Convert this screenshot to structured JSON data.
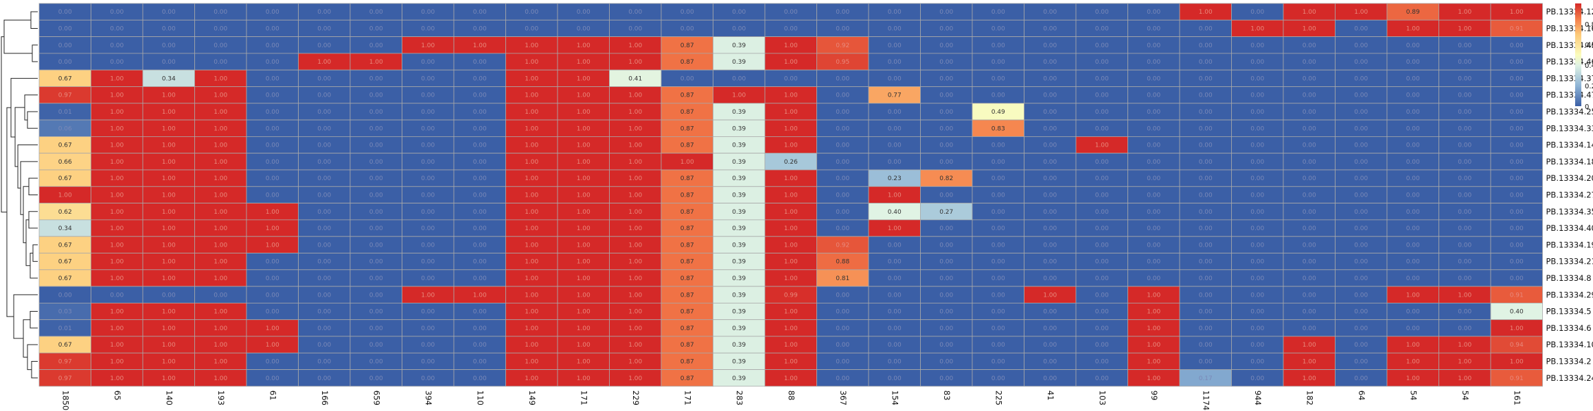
{
  "chart_data": {
    "type": "heatmap",
    "columns": [
      "1850",
      "65",
      "140",
      "193",
      "61",
      "166",
      "659",
      "394",
      "110",
      "149",
      "171",
      "229",
      "171",
      "283",
      "88",
      "367",
      "154",
      "83",
      "225",
      "41",
      "103",
      "99",
      "1174",
      "944",
      "182",
      "64",
      "54",
      "54",
      "161"
    ],
    "rows": [
      "PB.13334.12",
      "PB.13334.16",
      "PB.13334.45",
      "PB.13334.46",
      "PB.13334.37",
      "PB.13334.47",
      "PB.13334.25",
      "PB.13334.33",
      "PB.13334.14",
      "PB.13334.18",
      "PB.13334.20",
      "PB.13334.27",
      "PB.13334.35",
      "PB.13334.40",
      "PB.13334.19",
      "PB.13334.21",
      "PB.13334.8",
      "PB.13334.29",
      "PB.13334.5",
      "PB.13334.6",
      "PB.13334.10",
      "PB.13334.2",
      "PB.13334.24"
    ],
    "values": [
      [
        0,
        0,
        0,
        0,
        0,
        0,
        0,
        0,
        0,
        0,
        0,
        0,
        0,
        0,
        0,
        0,
        0,
        0,
        0,
        0,
        0,
        0,
        1,
        0,
        1,
        1,
        0.89,
        1,
        1
      ],
      [
        0,
        0,
        0,
        0,
        0,
        0,
        0,
        0,
        0,
        0,
        0,
        0,
        0,
        0,
        0,
        0,
        0,
        0,
        0,
        0,
        0,
        0,
        0,
        1,
        1,
        0,
        1,
        1,
        0.91
      ],
      [
        0,
        0,
        0,
        0,
        0,
        0,
        0,
        1,
        1,
        1,
        1,
        1,
        0.87,
        0.39,
        1,
        0.92,
        0,
        0,
        0,
        0,
        0,
        0,
        0,
        0,
        0,
        0,
        0,
        0,
        0
      ],
      [
        0,
        0,
        0,
        0,
        0,
        1,
        1,
        0,
        0,
        1,
        1,
        1,
        0.87,
        0.39,
        1,
        0.95,
        0,
        0,
        0,
        0,
        0,
        0,
        0,
        0,
        0,
        0,
        0,
        0,
        0
      ],
      [
        0.67,
        1,
        0.34,
        1,
        0,
        0,
        0,
        0,
        0,
        1,
        1,
        0.41,
        0,
        0,
        0,
        0,
        0,
        0,
        0,
        0,
        0,
        0,
        0,
        0,
        0,
        0,
        0,
        0,
        0
      ],
      [
        0.97,
        1,
        1,
        1,
        0,
        0,
        0,
        0,
        0,
        1,
        1,
        1,
        0.87,
        1,
        1,
        0,
        0.77,
        0,
        0,
        0,
        0,
        0,
        0,
        0,
        0,
        0,
        0,
        0,
        0
      ],
      [
        0.01,
        1,
        1,
        1,
        0,
        0,
        0,
        0,
        0,
        1,
        1,
        1,
        0.87,
        0.39,
        1,
        0,
        0,
        0,
        0.49,
        0,
        0,
        0,
        0,
        0,
        0,
        0,
        0,
        0,
        0
      ],
      [
        0.06,
        1,
        1,
        1,
        0,
        0,
        0,
        0,
        0,
        1,
        1,
        1,
        0.87,
        0.39,
        1,
        0,
        0,
        0,
        0.83,
        0,
        0,
        0,
        0,
        0,
        0,
        0,
        0,
        0,
        0
      ],
      [
        0.67,
        1,
        1,
        1,
        0,
        0,
        0,
        0,
        0,
        1,
        1,
        1,
        0.87,
        0.39,
        1,
        0,
        0,
        0,
        0,
        0,
        1,
        0,
        0,
        0,
        0,
        0,
        0,
        0,
        0
      ],
      [
        0.66,
        1,
        1,
        1,
        0,
        0,
        0,
        0,
        0,
        1,
        1,
        1,
        1,
        0.39,
        0.26,
        0,
        0,
        0,
        0,
        0,
        0,
        0,
        0,
        0,
        0,
        0,
        0,
        0,
        0
      ],
      [
        0.67,
        1,
        1,
        1,
        0,
        0,
        0,
        0,
        0,
        1,
        1,
        1,
        0.87,
        0.39,
        1,
        0,
        0.23,
        0.82,
        0,
        0,
        0,
        0,
        0,
        0,
        0,
        0,
        0,
        0,
        0
      ],
      [
        1,
        1,
        1,
        1,
        0,
        0,
        0,
        0,
        0,
        1,
        1,
        1,
        0.87,
        0.39,
        1,
        0,
        1,
        0,
        0,
        0,
        0,
        0,
        0,
        0,
        0,
        0,
        0,
        0,
        0
      ],
      [
        0.62,
        1,
        1,
        1,
        1,
        0,
        0,
        0,
        0,
        1,
        1,
        1,
        0.87,
        0.39,
        1,
        0,
        0.4,
        0.27,
        0,
        0,
        0,
        0,
        0,
        0,
        0,
        0,
        0,
        0,
        0
      ],
      [
        0.34,
        1,
        1,
        1,
        1,
        0,
        0,
        0,
        0,
        1,
        1,
        1,
        0.87,
        0.39,
        1,
        0,
        1,
        0,
        0,
        0,
        0,
        0,
        0,
        0,
        0,
        0,
        0,
        0,
        0
      ],
      [
        0.67,
        1,
        1,
        1,
        1,
        0,
        0,
        0,
        0,
        1,
        1,
        1,
        0.87,
        0.39,
        1,
        0.92,
        0,
        0,
        0,
        0,
        0,
        0,
        0,
        0,
        0,
        0,
        0,
        0,
        0
      ],
      [
        0.67,
        1,
        1,
        1,
        0,
        0,
        0,
        0,
        0,
        1,
        1,
        1,
        0.87,
        0.39,
        1,
        0.88,
        0,
        0,
        0,
        0,
        0,
        0,
        0,
        0,
        0,
        0,
        0,
        0,
        0
      ],
      [
        0.67,
        1,
        1,
        1,
        0,
        0,
        0,
        0,
        0,
        1,
        1,
        1,
        0.87,
        0.39,
        1,
        0.81,
        0,
        0,
        0,
        0,
        0,
        0,
        0,
        0,
        0,
        0,
        0,
        0,
        0
      ],
      [
        0,
        0,
        0,
        0,
        0,
        0,
        0,
        1,
        1,
        1,
        1,
        1,
        0.87,
        0.39,
        0.99,
        0,
        0,
        0,
        0,
        1,
        0,
        1,
        0,
        0,
        0,
        0,
        1,
        1,
        0.91
      ],
      [
        0.03,
        1,
        1,
        1,
        0,
        0,
        0,
        0,
        0,
        1,
        1,
        1,
        0.87,
        0.39,
        1,
        0,
        0,
        0,
        0,
        0,
        0,
        1,
        0,
        0,
        0,
        0,
        0,
        0,
        0.4
      ],
      [
        0.01,
        1,
        1,
        1,
        1,
        0,
        0,
        0,
        0,
        1,
        1,
        1,
        0.87,
        0.39,
        1,
        0,
        0,
        0,
        0,
        0,
        0,
        1,
        0,
        0,
        0,
        0,
        0,
        0,
        1
      ],
      [
        0.67,
        1,
        1,
        1,
        1,
        0,
        0,
        0,
        0,
        1,
        1,
        1,
        0.87,
        0.39,
        1,
        0,
        0,
        0,
        0,
        0,
        0,
        1,
        0,
        0,
        1,
        0,
        1,
        1,
        0.94
      ],
      [
        0.97,
        1,
        1,
        1,
        0,
        0,
        0,
        0,
        0,
        1,
        1,
        1,
        0.87,
        0.39,
        1,
        0,
        0,
        0,
        0,
        0,
        0,
        1,
        0,
        0,
        1,
        0,
        1,
        1,
        1
      ],
      [
        0.97,
        1,
        1,
        1,
        0,
        0,
        0,
        0,
        0,
        1,
        1,
        1,
        0.87,
        0.39,
        1,
        0,
        0,
        0,
        0,
        0,
        0,
        1,
        0.17,
        0,
        1,
        0,
        1,
        1,
        0.91
      ]
    ],
    "color_scale": {
      "min": 0,
      "max": 1,
      "stops": [
        {
          "value": 0,
          "color": "#3b5fa6"
        },
        {
          "value": 0.2,
          "color": "#8fb5d6"
        },
        {
          "value": 0.4,
          "color": "#e0f3e4"
        },
        {
          "value": 0.5,
          "color": "#fbfcbc"
        },
        {
          "value": 0.7,
          "color": "#fdc978"
        },
        {
          "value": 0.85,
          "color": "#f47d4a"
        },
        {
          "value": 1,
          "color": "#d52928"
        }
      ],
      "ticks": [
        "0",
        "0.2",
        "0.4",
        "0.6",
        "0.8"
      ]
    },
    "cell_border_color": "#a9a9a9",
    "label_format": "2-decimal"
  }
}
